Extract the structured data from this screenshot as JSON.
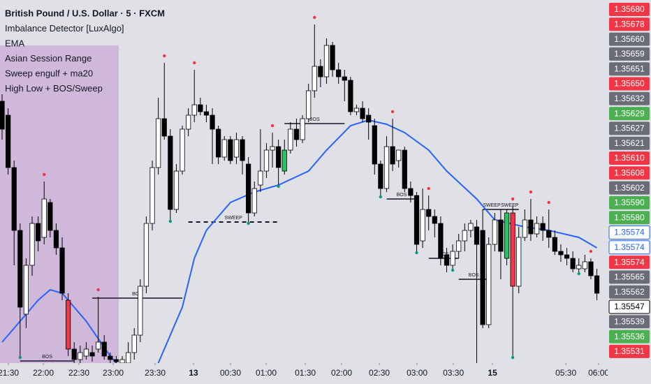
{
  "chart_data": {
    "type": "candlestick",
    "legend": [
      "British Pound / U.S. Dollar · 5 · FXCM",
      "Imbalance Detector [LuxAlgo]",
      "EMA",
      "Asian Session Range",
      "Sweep engulf + ma20",
      "High Low + BOS/Sweep"
    ],
    "xlim": [
      -0.35,
      100.8
    ],
    "ylim": [
      1.35525,
      1.35681
    ],
    "xticks": [
      {
        "value": 1.05,
        "label": "21:30"
      },
      {
        "value": 6.86,
        "label": "22:00"
      },
      {
        "value": 12.79,
        "label": "22:30"
      },
      {
        "value": 18.49,
        "label": "23:00"
      },
      {
        "value": 25.47,
        "label": "23:30"
      },
      {
        "value": 31.86,
        "label": "13"
      },
      {
        "value": 38.02,
        "label": "00:30"
      },
      {
        "value": 43.95,
        "label": "01:00"
      },
      {
        "value": 50.47,
        "label": "01:30"
      },
      {
        "value": 56.51,
        "label": "02:00"
      },
      {
        "value": 62.79,
        "label": "02:30"
      },
      {
        "value": 69.07,
        "label": "03:00"
      },
      {
        "value": 75.12,
        "label": "03:30"
      },
      {
        "value": 81.63,
        "label": "15"
      },
      {
        "value": 93.84,
        "label": "05:30"
      },
      {
        "value": 99.3,
        "label": "06:00"
      }
    ],
    "up_color": "#ffffff",
    "down_color": "#000000",
    "highlights": [
      {
        "index": 47,
        "color": "#22c55e"
      },
      {
        "index": 84,
        "color": "#22c55e"
      },
      {
        "index": 85,
        "color": "#f23645"
      },
      {
        "index": 11,
        "color": "#f23645"
      }
    ],
    "open": [
      1.356375,
      1.356315,
      1.35609,
      1.35582,
      1.35546,
      1.35567,
      1.35585,
      1.35579,
      1.35594,
      1.35582,
      1.355745,
      1.35552,
      1.35531,
      1.355265,
      1.35528,
      1.355295,
      1.35531,
      1.35534,
      1.35528,
      1.355265,
      1.35525,
      1.35525,
      1.355295,
      1.35537,
      1.35558,
      1.35585,
      1.35609,
      1.3563,
      1.356225,
      1.35591,
      1.356075,
      1.356255,
      1.356315,
      1.35636,
      1.35633,
      1.356315,
      1.356255,
      1.356135,
      1.35621,
      1.356135,
      1.35621,
      1.356105,
      1.355895,
      1.356015,
      1.356075,
      1.356165,
      1.35618,
      1.356075,
      1.356165,
      1.356255,
      1.35621,
      1.3563,
      1.35642,
      1.356525,
      1.35648,
      1.356615,
      1.35651,
      1.35648,
      1.356465,
      1.35633,
      1.356345,
      1.356315,
      1.35627,
      1.356105,
      1.356,
      1.35618,
      1.35612,
      1.356165,
      1.356,
      1.35597,
      1.355775,
      1.35591,
      1.35588,
      1.35585,
      1.355715,
      1.35567,
      1.35573,
      1.355775,
      1.35582,
      1.355835,
      1.35582,
      1.355415,
      1.35576,
      1.355865,
      1.3557,
      1.355895,
      1.35558,
      1.35579,
      1.355865,
      1.355805,
      1.35585,
      1.35582,
      1.35579,
      1.35573,
      1.355715,
      1.3557,
      1.355655,
      1.355655,
      1.355685,
      1.355625
    ],
    "high": [
      1.356405,
      1.356345,
      1.35612,
      1.35585,
      1.3557,
      1.35588,
      1.35588,
      1.35603,
      1.355955,
      1.35585,
      1.35579,
      1.35555,
      1.35534,
      1.355325,
      1.35534,
      1.355325,
      1.355535,
      1.35537,
      1.355295,
      1.35528,
      1.35528,
      1.35534,
      1.3554,
      1.35561,
      1.35588,
      1.35612,
      1.35639,
      1.35654,
      1.356255,
      1.356105,
      1.35627,
      1.356345,
      1.35651,
      1.35639,
      1.35636,
      1.356345,
      1.35627,
      1.356225,
      1.356225,
      1.35624,
      1.356225,
      1.356135,
      1.35603,
      1.356255,
      1.356195,
      1.35624,
      1.35621,
      1.35621,
      1.356285,
      1.3563,
      1.356315,
      1.35645,
      1.356705,
      1.356555,
      1.356645,
      1.35663,
      1.35654,
      1.35651,
      1.35648,
      1.35636,
      1.356375,
      1.356345,
      1.3563,
      1.35612,
      1.356225,
      1.3563,
      1.356165,
      1.35618,
      1.35603,
      1.355985,
      1.356,
      1.35597,
      1.35591,
      1.35588,
      1.355745,
      1.35576,
      1.355805,
      1.35585,
      1.355865,
      1.355865,
      1.35591,
      1.35579,
      1.355895,
      1.35591,
      1.35591,
      1.355925,
      1.355835,
      1.35591,
      1.355955,
      1.35588,
      1.35588,
      1.35591,
      1.35582,
      1.35576,
      1.355745,
      1.35573,
      1.3557,
      1.355715,
      1.3557,
      1.355655
    ],
    "low": [
      1.35621,
      1.35606,
      1.35567,
      1.35528,
      1.3554,
      1.355625,
      1.35573,
      1.35576,
      1.35579,
      1.355715,
      1.35552,
      1.35528,
      1.35525,
      1.35525,
      1.355265,
      1.355256,
      1.355295,
      1.355265,
      1.35525,
      1.35525,
      1.35525,
      1.35525,
      1.355265,
      1.35534,
      1.35555,
      1.35582,
      1.35606,
      1.35621,
      1.355865,
      1.355895,
      1.35606,
      1.356225,
      1.356285,
      1.356315,
      1.356285,
      1.356105,
      1.356105,
      1.35612,
      1.356105,
      1.356105,
      1.35606,
      1.355856,
      1.35588,
      1.355985,
      1.356045,
      1.35609,
      1.356015,
      1.35606,
      1.35615,
      1.35618,
      1.356195,
      1.356285,
      1.35639,
      1.356435,
      1.35645,
      1.35648,
      1.35645,
      1.356375,
      1.356315,
      1.356315,
      1.356285,
      1.35621,
      1.35606,
      1.35597,
      1.355985,
      1.356075,
      1.35609,
      1.355985,
      1.35594,
      1.35573,
      1.355745,
      1.35582,
      1.35579,
      1.35567,
      1.35564,
      1.355655,
      1.3557,
      1.35573,
      1.35579,
      1.35525,
      1.3554,
      1.3554,
      1.35573,
      1.35561,
      1.35567,
      1.35528,
      1.35555,
      1.355775,
      1.355775,
      1.35579,
      1.355775,
      1.355745,
      1.355715,
      1.355685,
      1.35567,
      1.35564,
      1.35564,
      1.35564,
      1.35561,
      1.35552
    ],
    "close": [
      1.356255,
      1.35609,
      1.35582,
      1.35549,
      1.35567,
      1.35585,
      1.355775,
      1.355955,
      1.35582,
      1.355745,
      1.35555,
      1.35531,
      1.355265,
      1.355295,
      1.35531,
      1.35528,
      1.35534,
      1.35528,
      1.355265,
      1.355256,
      1.355265,
      1.355295,
      1.35537,
      1.35558,
      1.35585,
      1.35609,
      1.3563,
      1.356225,
      1.35591,
      1.356075,
      1.356255,
      1.356315,
      1.35636,
      1.35633,
      1.356315,
      1.356255,
      1.356135,
      1.35621,
      1.35612,
      1.35621,
      1.35612,
      1.355895,
      1.356,
      1.356075,
      1.356165,
      1.35618,
      1.35609,
      1.356165,
      1.356255,
      1.35621,
      1.3563,
      1.35642,
      1.356525,
      1.35648,
      1.356615,
      1.35651,
      1.35648,
      1.356465,
      1.35633,
      1.356345,
      1.3563,
      1.356285,
      1.356105,
      1.356,
      1.35618,
      1.356105,
      1.356165,
      1.356,
      1.35597,
      1.35576,
      1.35591,
      1.35588,
      1.35585,
      1.3557,
      1.35567,
      1.35573,
      1.355775,
      1.35582,
      1.35585,
      1.35576,
      1.355415,
      1.35576,
      1.355865,
      1.35573,
      1.355895,
      1.35558,
      1.35579,
      1.355865,
      1.355805,
      1.35585,
      1.35582,
      1.35579,
      1.35573,
      1.355715,
      1.3557,
      1.355655,
      1.35567,
      1.355685,
      1.355625,
      1.35555
    ],
    "ema": {
      "color": "#2962ff",
      "x": [
        0,
        3,
        6,
        8,
        10,
        12,
        14,
        16,
        18,
        19,
        22,
        26,
        27,
        30,
        32,
        34,
        38,
        42,
        46,
        51,
        54,
        58,
        61,
        64,
        67,
        71,
        74,
        79,
        82,
        87,
        91,
        96,
        99
      ],
      "values": [
        1.35534,
        1.35543,
        1.35552,
        1.355565,
        1.35555,
        1.35549,
        1.35543,
        1.355355,
        1.35528,
        1.35525,
        null,
        1.35525,
        1.35531,
        1.35549,
        1.3557,
        1.35582,
        1.35594,
        1.355985,
        1.356015,
        1.356075,
        1.356165,
        1.35627,
        1.356294,
        1.356276,
        1.35624,
        1.356165,
        1.356075,
        1.355955,
        1.355865,
        1.355835,
        1.35582,
        1.35579,
        1.355745
      ]
    },
    "asian_session": {
      "from": -0.35,
      "to": 19.4,
      "high": 1.356615,
      "low": 1.35525,
      "color": "#c9a9d6"
    },
    "levels": [
      {
        "label": "BOS",
        "value": 1.355259,
        "from": 3,
        "to": 12,
        "dashed": false
      },
      {
        "label": "BOS",
        "value": 1.355529,
        "from": 15,
        "to": 30,
        "dashed": false
      },
      {
        "label": "SWEEP",
        "value": 1.355856,
        "from": 31,
        "to": 46,
        "dashed": true
      },
      {
        "label": "BOS",
        "value": 1.356279,
        "from": 47,
        "to": 57,
        "dashed": false
      },
      {
        "label": "BOS",
        "value": 1.355955,
        "from": 64,
        "to": 69,
        "dashed": false
      },
      {
        "label": "BOS",
        "value": 1.3557,
        "from": 71,
        "to": 76,
        "dashed": false
      },
      {
        "label": "BOS",
        "value": 1.35561,
        "from": 76,
        "to": 81,
        "dashed": false
      },
      {
        "label": "SWEEP",
        "value": 1.35591,
        "from": 80,
        "to": 83,
        "dashed": false
      },
      {
        "label": "SWEEP",
        "value": 1.35591,
        "from": 83,
        "to": 86,
        "dashed": false
      }
    ],
    "swing_high_indices": [
      7,
      16,
      27,
      32,
      45,
      52,
      65,
      71,
      85,
      88,
      91,
      98
    ],
    "swing_low_indices": [
      3,
      28,
      41,
      46,
      63,
      69,
      75,
      85,
      96
    ],
    "price_labels": [
      {
        "value": 1.3568,
        "label": "1.35680",
        "color": "#f23645"
      },
      {
        "value": 1.35678,
        "label": "1.35678",
        "color": "#f23645"
      },
      {
        "value": 1.3566,
        "label": "1.35660",
        "color": "#6a6d78"
      },
      {
        "value": 1.35659,
        "label": "1.35659",
        "color": "#6a6d78"
      },
      {
        "value": 1.35651,
        "label": "1.35651",
        "color": "#6a6d78"
      },
      {
        "value": 1.3565,
        "label": "1.35650",
        "color": "#f23645"
      },
      {
        "value": 1.35632,
        "label": "1.35632",
        "color": "#6a6d78"
      },
      {
        "value": 1.35629,
        "label": "1.35629",
        "color": "#4caf50"
      },
      {
        "value": 1.35627,
        "label": "1.35627",
        "color": "#6a6d78"
      },
      {
        "value": 1.35621,
        "label": "1.35621",
        "color": "#6a6d78"
      },
      {
        "value": 1.3561,
        "label": "1.35610",
        "color": "#f23645"
      },
      {
        "value": 1.35608,
        "label": "1.35608",
        "color": "#f23645"
      },
      {
        "value": 1.35602,
        "label": "1.35602",
        "color": "#6a6d78"
      },
      {
        "value": 1.3559,
        "label": "1.35590",
        "color": "#4caf50"
      },
      {
        "value": 1.3558,
        "label": "1.35580",
        "color": "#4caf50"
      },
      {
        "value": 1.35574,
        "label": "1.35574",
        "color": "#ffffff",
        "text_color": "#2962ff"
      },
      {
        "value": 1.35574,
        "label": "1.35574",
        "color": "#ffffff",
        "text_color": "#2962ff"
      },
      {
        "value": 1.35574,
        "label": "1.35574",
        "color": "#f23645"
      },
      {
        "value": 1.35565,
        "label": "1.35565",
        "color": "#6a6d78"
      },
      {
        "value": 1.35562,
        "label": "1.35562",
        "color": "#6a6d78"
      },
      {
        "value": 1.35547,
        "label": "1.35547",
        "color": "#ffffff",
        "text_color": "#000000"
      },
      {
        "value": 1.35539,
        "label": "1.35539",
        "color": "#6a6d78"
      },
      {
        "value": 1.35536,
        "label": "1.35536",
        "color": "#4caf50"
      },
      {
        "value": 1.35531,
        "label": "1.35531",
        "color": "#f23645"
      }
    ]
  }
}
